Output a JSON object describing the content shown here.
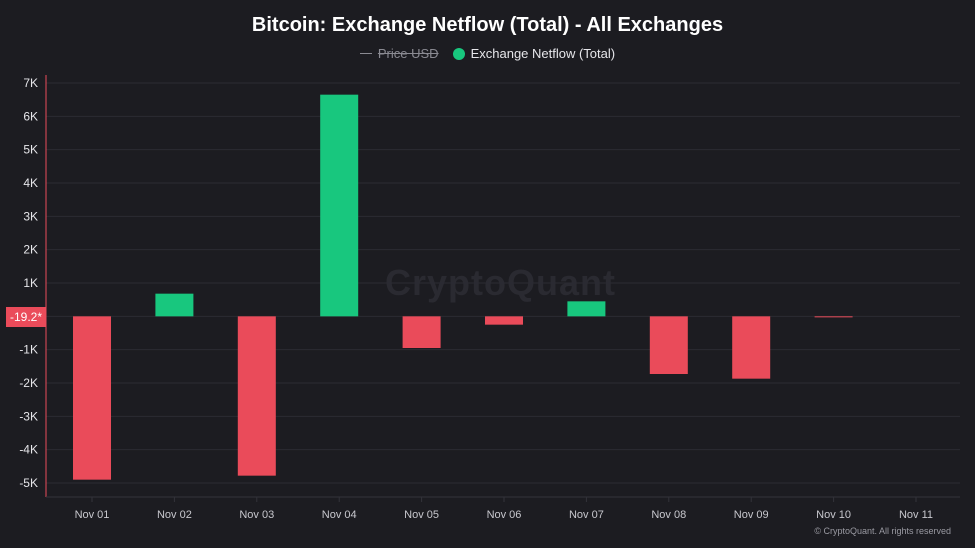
{
  "title": "Bitcoin: Exchange Netflow (Total) - All Exchanges",
  "legend": {
    "price_label": "Price USD",
    "netflow_label": "Exchange Netflow (Total)"
  },
  "watermark": "CryptoQuant",
  "copyright": "© CryptoQuant. All rights reserved",
  "current_marker": "-19.2*",
  "colors": {
    "positive": "#18c77e",
    "negative": "#ea4b5a",
    "background": "#1c1c21",
    "axis_line": "#ea4b5a"
  },
  "chart_data": {
    "type": "bar",
    "title": "Bitcoin: Exchange Netflow (Total) - All Exchanges",
    "categories": [
      "Nov 01",
      "Nov 02",
      "Nov 03",
      "Nov 04",
      "Nov 05",
      "Nov 06",
      "Nov 07",
      "Nov 08",
      "Nov 09",
      "Nov 10",
      "Nov 11"
    ],
    "series": [
      {
        "name": "Exchange Netflow (Total)",
        "values": [
          -4900,
          680,
          -4780,
          6650,
          -950,
          -250,
          450,
          -1730,
          -1870,
          -19.2,
          null
        ]
      }
    ],
    "ylim": [
      -5000,
      7000
    ],
    "yticks": [
      7000,
      6000,
      5000,
      4000,
      3000,
      2000,
      1000,
      0,
      -1000,
      -2000,
      -3000,
      -4000,
      -5000
    ],
    "ytick_labels": [
      "7K",
      "6K",
      "5K",
      "4K",
      "3K",
      "2K",
      "1K",
      "",
      "-1K",
      "-2K",
      "-3K",
      "-4K",
      "-5K"
    ],
    "xlabel": "",
    "ylabel": "",
    "grid": true,
    "legend_position": "top-center"
  }
}
